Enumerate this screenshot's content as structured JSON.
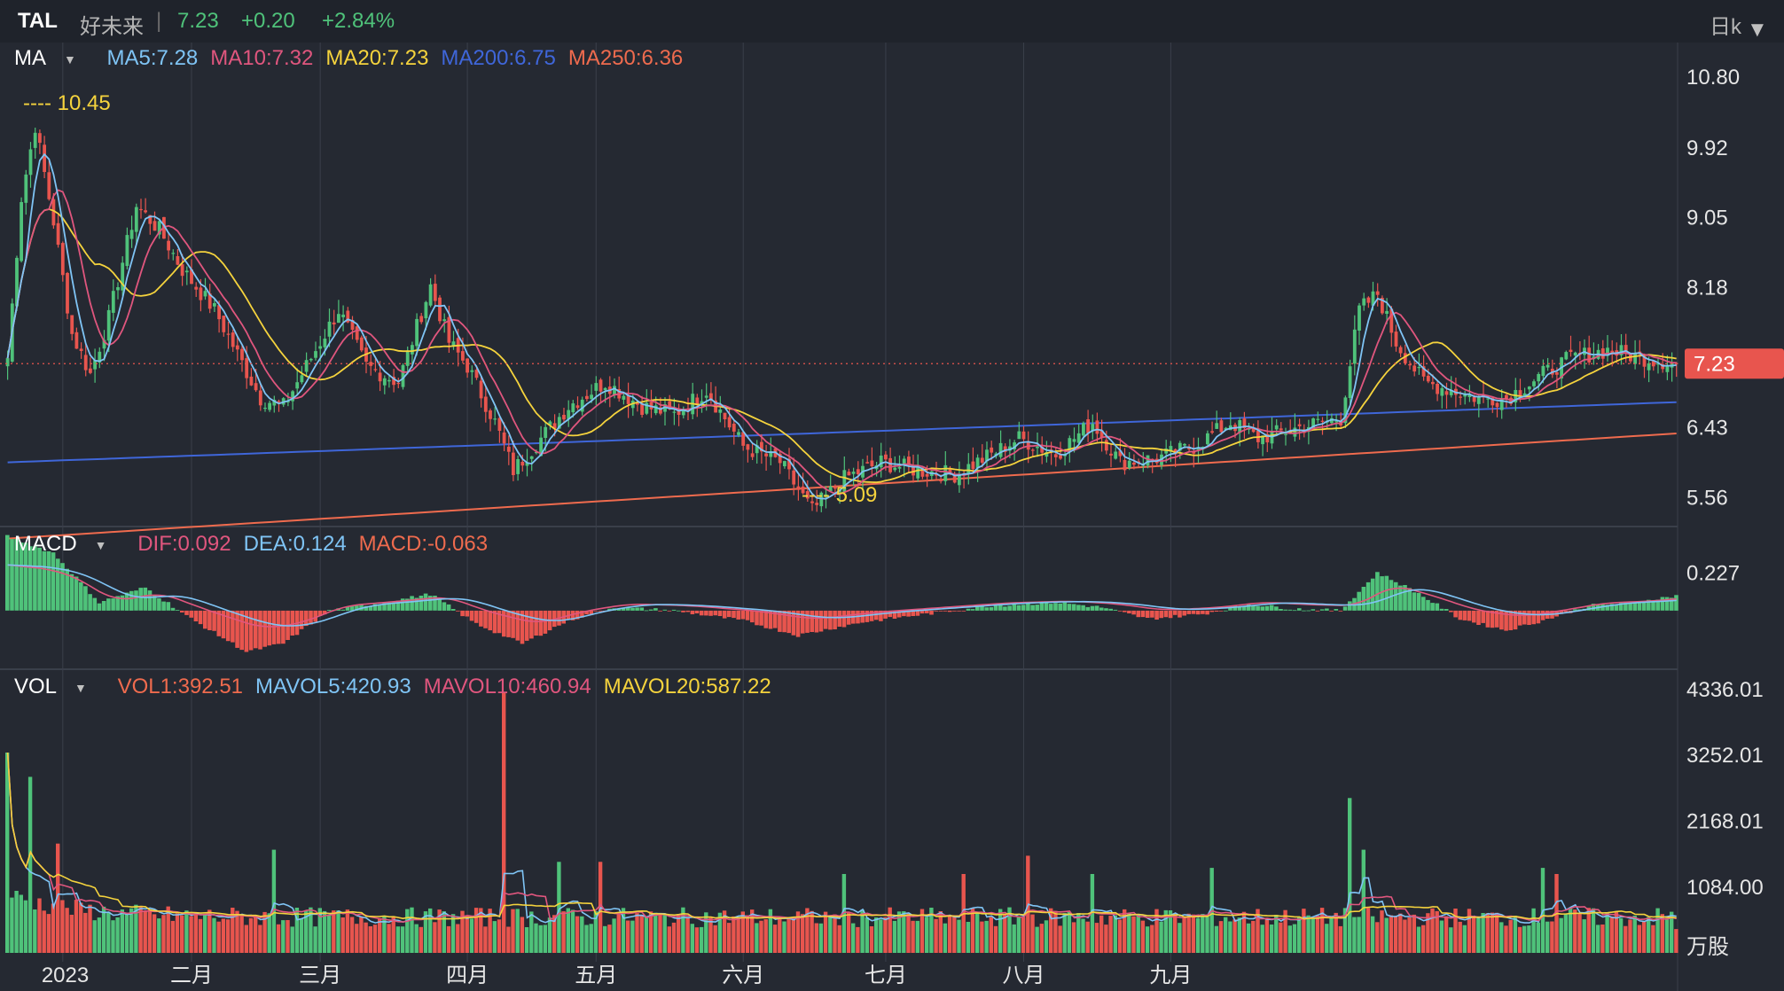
{
  "header": {
    "ticker": "TAL",
    "name": "好未来",
    "separator": "|",
    "price": "7.23",
    "change": "+0.20",
    "change_pct": "+2.84%",
    "period": "日k"
  },
  "colors": {
    "background": "#252932",
    "header_bg": "#1f232b",
    "up": "#4fc27a",
    "down": "#e8554e",
    "ma5": "#7fc4f5",
    "ma10": "#e0567e",
    "ma20": "#f5d33d",
    "ma200": "#3f66d9",
    "ma250": "#ef6b4e",
    "axis_text": "#e6e6e6",
    "price_tag": "#e8554e"
  },
  "price_legend": {
    "indicator": "MA",
    "items": [
      {
        "label": "MA5:7.28",
        "color": "#7fc4f5"
      },
      {
        "label": "MA10:7.32",
        "color": "#e0567e"
      },
      {
        "label": "MA20:7.23",
        "color": "#f5d33d"
      },
      {
        "label": "MA200:6.75",
        "color": "#3f66d9"
      },
      {
        "label": "MA250:6.36",
        "color": "#ef6b4e"
      }
    ]
  },
  "macd_legend": {
    "indicator": "MACD",
    "items": [
      {
        "label": "DIF:0.092",
        "color": "#e0567e"
      },
      {
        "label": "DEA:0.124",
        "color": "#7fc4f5"
      },
      {
        "label": "MACD:-0.063",
        "color": "#ef6b4e"
      }
    ]
  },
  "vol_legend": {
    "indicator": "VOL",
    "items": [
      {
        "label": "VOL1:392.51",
        "color": "#ef6b4e"
      },
      {
        "label": "MAVOL5:420.93",
        "color": "#7fc4f5"
      },
      {
        "label": "MAVOL10:460.94",
        "color": "#e0567e"
      },
      {
        "label": "MAVOL20:587.22",
        "color": "#f5d33d"
      }
    ]
  },
  "annotations": {
    "high_label": "---- 10.45",
    "low_label": "---- 5.09"
  },
  "chart_data": {
    "type": "candlestick",
    "title": "",
    "x_labels": [
      "2023",
      "二月",
      "三月",
      "四月",
      "五月",
      "六月",
      "七月",
      "八月",
      "九月"
    ],
    "price_axis": {
      "ticks": [
        "10.80",
        "9.92",
        "9.05",
        "8.18",
        "7.23",
        "6.43",
        "5.56"
      ],
      "current_price": "7.23",
      "range": [
        5.2,
        11.1
      ]
    },
    "high": 10.45,
    "low": 5.09,
    "price_series_knots": [
      [
        0,
        7.3
      ],
      [
        3,
        9.3
      ],
      [
        6,
        10.2
      ],
      [
        10,
        9.0
      ],
      [
        14,
        7.6
      ],
      [
        18,
        7.1
      ],
      [
        22,
        7.8
      ],
      [
        28,
        9.2
      ],
      [
        33,
        8.9
      ],
      [
        38,
        8.4
      ],
      [
        45,
        7.9
      ],
      [
        55,
        6.8
      ],
      [
        60,
        6.7
      ],
      [
        68,
        7.5
      ],
      [
        72,
        7.9
      ],
      [
        78,
        7.2
      ],
      [
        85,
        7.0
      ],
      [
        92,
        8.2
      ],
      [
        96,
        7.5
      ],
      [
        100,
        7.2
      ],
      [
        106,
        6.5
      ],
      [
        110,
        5.9
      ],
      [
        116,
        6.3
      ],
      [
        122,
        6.7
      ],
      [
        130,
        7.0
      ],
      [
        138,
        6.7
      ],
      [
        145,
        6.6
      ],
      [
        152,
        6.9
      ],
      [
        160,
        6.2
      ],
      [
        168,
        6.0
      ],
      [
        175,
        5.4
      ],
      [
        182,
        5.8
      ],
      [
        190,
        6.0
      ],
      [
        198,
        5.9
      ],
      [
        206,
        5.85
      ],
      [
        214,
        6.1
      ],
      [
        220,
        6.3
      ],
      [
        228,
        6.1
      ],
      [
        236,
        6.5
      ],
      [
        242,
        6.0
      ],
      [
        250,
        6.05
      ],
      [
        258,
        6.2
      ],
      [
        266,
        6.5
      ],
      [
        272,
        6.3
      ],
      [
        282,
        6.45
      ],
      [
        290,
        6.55
      ],
      [
        294,
        7.9
      ],
      [
        298,
        8.1
      ],
      [
        302,
        7.5
      ],
      [
        308,
        7.0
      ],
      [
        314,
        6.9
      ],
      [
        320,
        6.8
      ],
      [
        326,
        6.8
      ],
      [
        334,
        7.1
      ],
      [
        340,
        7.3
      ],
      [
        348,
        7.4
      ],
      [
        356,
        7.3
      ],
      [
        363,
        7.23
      ]
    ],
    "ma200_endpoints": [
      6.0,
      6.75
    ],
    "ma250_endpoints": [
      5.05,
      6.36
    ],
    "macd_axis": {
      "ticks": [
        "0.227"
      ],
      "range": [
        -0.34,
        0.5
      ]
    },
    "macd_knots": [
      [
        0,
        0.45
      ],
      [
        10,
        0.35
      ],
      [
        20,
        0.05
      ],
      [
        30,
        0.14
      ],
      [
        40,
        -0.05
      ],
      [
        52,
        -0.25
      ],
      [
        60,
        -0.2
      ],
      [
        70,
        0.0
      ],
      [
        82,
        0.05
      ],
      [
        92,
        0.1
      ],
      [
        102,
        -0.08
      ],
      [
        112,
        -0.2
      ],
      [
        122,
        -0.06
      ],
      [
        132,
        0.02
      ],
      [
        145,
        0.0
      ],
      [
        160,
        -0.06
      ],
      [
        172,
        -0.15
      ],
      [
        186,
        -0.07
      ],
      [
        200,
        -0.02
      ],
      [
        214,
        0.03
      ],
      [
        228,
        0.05
      ],
      [
        238,
        0.02
      ],
      [
        248,
        -0.05
      ],
      [
        260,
        -0.02
      ],
      [
        270,
        0.04
      ],
      [
        280,
        0.01
      ],
      [
        290,
        0.0
      ],
      [
        298,
        0.23
      ],
      [
        306,
        0.12
      ],
      [
        316,
        -0.05
      ],
      [
        326,
        -0.12
      ],
      [
        334,
        -0.06
      ],
      [
        344,
        0.03
      ],
      [
        354,
        0.05
      ],
      [
        363,
        0.09
      ]
    ],
    "vol_axis": {
      "ticks": [
        "4336.01",
        "3252.01",
        "2168.01",
        "1084.00"
      ],
      "unit": "万股",
      "range": [
        0,
        4336.01
      ]
    },
    "vol_spikes": [
      [
        0,
        3300
      ],
      [
        5,
        2900
      ],
      [
        11,
        1800
      ],
      [
        58,
        1700
      ],
      [
        108,
        4300
      ],
      [
        120,
        1500
      ],
      [
        129,
        1500
      ],
      [
        182,
        1300
      ],
      [
        208,
        1300
      ],
      [
        222,
        1600
      ],
      [
        236,
        1300
      ],
      [
        262,
        1400
      ],
      [
        292,
        2550
      ],
      [
        295,
        1700
      ],
      [
        334,
        1400
      ],
      [
        337,
        1300
      ]
    ],
    "last_volume": 392.51
  }
}
